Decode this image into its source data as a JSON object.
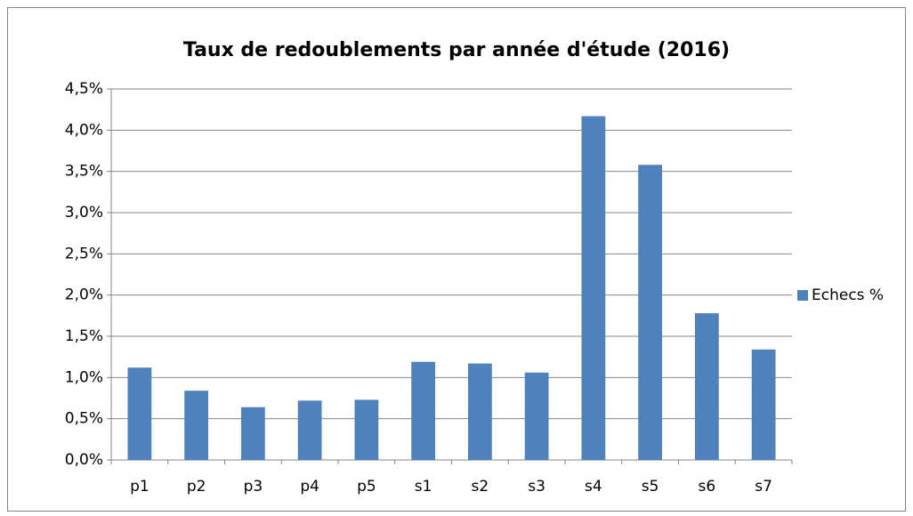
{
  "chart_data": {
    "type": "bar",
    "title": "Taux de redoublements par année d'étude (2016)",
    "categories": [
      "p1",
      "p2",
      "p3",
      "p4",
      "p5",
      "s1",
      "s2",
      "s3",
      "s4",
      "s5",
      "s6",
      "s7"
    ],
    "series": [
      {
        "name": "Echecs %",
        "color": "#4f81bd",
        "values": [
          1.12,
          0.84,
          0.64,
          0.72,
          0.73,
          1.19,
          1.17,
          1.06,
          4.17,
          3.58,
          1.78,
          1.34
        ]
      }
    ],
    "ylim": [
      0,
      4.5
    ],
    "yticks": [
      {
        "value": 0,
        "label": "0,0%"
      },
      {
        "value": 0.5,
        "label": "0,5%"
      },
      {
        "value": 1,
        "label": "1,0%"
      },
      {
        "value": 1.5,
        "label": "1,5%"
      },
      {
        "value": 2,
        "label": "2,0%"
      },
      {
        "value": 2.5,
        "label": "2,5%"
      },
      {
        "value": 3,
        "label": "3,0%"
      },
      {
        "value": 3.5,
        "label": "3,5%"
      },
      {
        "value": 4,
        "label": "4,0%"
      },
      {
        "value": 4.5,
        "label": "4,5%"
      }
    ],
    "grid": true,
    "legend": "right"
  }
}
